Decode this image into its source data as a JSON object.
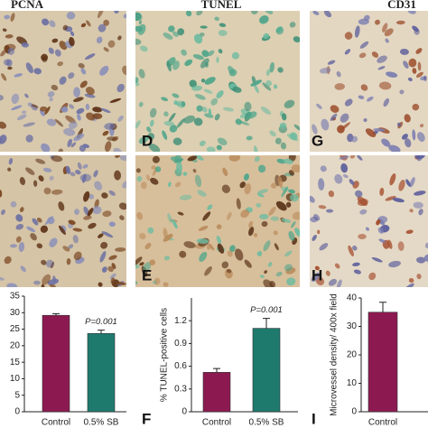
{
  "headers": [
    "PCNA",
    "TUNEL",
    "CD31"
  ],
  "panel_labels": [
    "D",
    "G",
    "E",
    "H",
    "F",
    "I"
  ],
  "chart_data": [
    {
      "type": "bar",
      "categories": [
        "Control",
        "0.5% SB"
      ],
      "values": [
        29.2,
        23.7
      ],
      "errors": [
        0.5,
        1.0
      ],
      "colors": [
        "#8c1a50",
        "#1f7a6e"
      ],
      "annotation": "P=0.001",
      "ylim": [
        0,
        35
      ],
      "yticks": [
        0,
        5,
        10,
        15,
        20,
        25,
        30,
        35
      ]
    },
    {
      "type": "bar",
      "y_label": "% TUNEL-positive cells",
      "categories": [
        "Control",
        "0.5% SB"
      ],
      "values": [
        0.52,
        1.1
      ],
      "errors": [
        0.05,
        0.13
      ],
      "colors": [
        "#8c1a50",
        "#1f7a6e"
      ],
      "annotation": "P=0.001",
      "ylim": [
        0,
        1.5
      ],
      "yticks": [
        0,
        0.3,
        0.6,
        0.9,
        1.2
      ]
    },
    {
      "type": "bar",
      "y_label": "Microvessel density/ 400x field",
      "categories": [
        "Control"
      ],
      "values": [
        35
      ],
      "errors": [
        3.5
      ],
      "colors": [
        "#8c1a50"
      ],
      "ylim": [
        0,
        40
      ],
      "yticks": [
        0,
        10,
        20,
        30,
        40
      ]
    }
  ]
}
